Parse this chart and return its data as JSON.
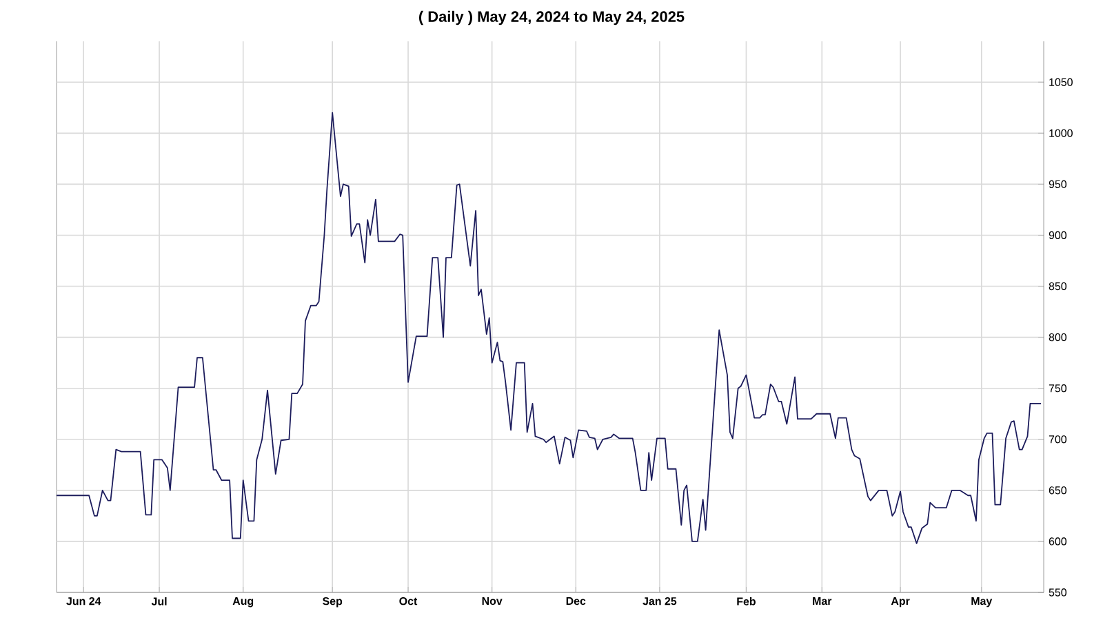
{
  "chart_data": {
    "type": "line",
    "title": "( Daily ) May 24, 2024 to May 24, 2025",
    "x": [
      "2024-05-24",
      "2024-06-05",
      "2024-06-07",
      "2024-06-08",
      "2024-06-10",
      "2024-06-12",
      "2024-06-13",
      "2024-06-15",
      "2024-06-17",
      "2024-06-24",
      "2024-06-26",
      "2024-06-28",
      "2024-06-29",
      "2024-07-02",
      "2024-07-04",
      "2024-07-05",
      "2024-07-08",
      "2024-07-14",
      "2024-07-15",
      "2024-07-17",
      "2024-07-19",
      "2024-07-21",
      "2024-07-22",
      "2024-07-24",
      "2024-07-27",
      "2024-07-28",
      "2024-07-31",
      "2024-08-01",
      "2024-08-03",
      "2024-08-05",
      "2024-08-06",
      "2024-08-08",
      "2024-08-10",
      "2024-08-13",
      "2024-08-15",
      "2024-08-18",
      "2024-08-19",
      "2024-08-21",
      "2024-08-23",
      "2024-08-24",
      "2024-08-26",
      "2024-08-28",
      "2024-08-29",
      "2024-08-31",
      "2024-09-01",
      "2024-09-03",
      "2024-09-06",
      "2024-09-07",
      "2024-09-09",
      "2024-09-10",
      "2024-09-12",
      "2024-09-13",
      "2024-09-15",
      "2024-09-16",
      "2024-09-17",
      "2024-09-19",
      "2024-09-20",
      "2024-09-26",
      "2024-09-28",
      "2024-09-29",
      "2024-10-01",
      "2024-10-04",
      "2024-10-08",
      "2024-10-10",
      "2024-10-12",
      "2024-10-14",
      "2024-10-15",
      "2024-10-17",
      "2024-10-19",
      "2024-10-20",
      "2024-10-24",
      "2024-10-26",
      "2024-10-27",
      "2024-10-28",
      "2024-10-30",
      "2024-10-31",
      "2024-11-01",
      "2024-11-03",
      "2024-11-04",
      "2024-11-05",
      "2024-11-06",
      "2024-11-08",
      "2024-11-10",
      "2024-11-13",
      "2024-11-14",
      "2024-11-16",
      "2024-11-17",
      "2024-11-20",
      "2024-11-21",
      "2024-11-24",
      "2024-11-26",
      "2024-11-28",
      "2024-11-30",
      "2024-12-01",
      "2024-12-03",
      "2024-12-06",
      "2024-12-07",
      "2024-12-09",
      "2024-12-10",
      "2024-12-12",
      "2024-12-15",
      "2024-12-16",
      "2024-12-18",
      "2024-12-23",
      "2024-12-24",
      "2024-12-26",
      "2024-12-28",
      "2024-12-29",
      "2024-12-30",
      "2025-01-01",
      "2025-01-04",
      "2025-01-05",
      "2025-01-08",
      "2025-01-10",
      "2025-01-11",
      "2025-01-12",
      "2025-01-14",
      "2025-01-16",
      "2025-01-18",
      "2025-01-19",
      "2025-01-24",
      "2025-01-27",
      "2025-01-28",
      "2025-01-29",
      "2025-01-31",
      "2025-02-01",
      "2025-02-03",
      "2025-02-06",
      "2025-02-08",
      "2025-02-09",
      "2025-02-10",
      "2025-02-12",
      "2025-02-13",
      "2025-02-15",
      "2025-02-16",
      "2025-02-18",
      "2025-02-21",
      "2025-02-22",
      "2025-02-27",
      "2025-03-01",
      "2025-03-06",
      "2025-03-08",
      "2025-03-09",
      "2025-03-12",
      "2025-03-14",
      "2025-03-15",
      "2025-03-17",
      "2025-03-20",
      "2025-03-21",
      "2025-03-24",
      "2025-03-27",
      "2025-03-29",
      "2025-03-30",
      "2025-04-01",
      "2025-04-02",
      "2025-04-04",
      "2025-04-05",
      "2025-04-07",
      "2025-04-09",
      "2025-04-11",
      "2025-04-12",
      "2025-04-14",
      "2025-04-18",
      "2025-04-20",
      "2025-04-23",
      "2025-04-26",
      "2025-04-27",
      "2025-04-29",
      "2025-04-30",
      "2025-05-02",
      "2025-05-03",
      "2025-05-05",
      "2025-05-06",
      "2025-05-08",
      "2025-05-10",
      "2025-05-12",
      "2025-05-13",
      "2025-05-15",
      "2025-05-16",
      "2025-05-18",
      "2025-05-19",
      "2025-05-23"
    ],
    "values": [
      645,
      645,
      625,
      625,
      650,
      640,
      640,
      690,
      688,
      688,
      626,
      626,
      680,
      680,
      672,
      650,
      751,
      751,
      780,
      780,
      725,
      670,
      670,
      660,
      660,
      603,
      603,
      660,
      620,
      620,
      680,
      700,
      748,
      666,
      699,
      700,
      745,
      745,
      754,
      816,
      831,
      831,
      835,
      900,
      945,
      1020,
      938,
      950,
      948,
      899,
      911,
      911,
      873,
      915,
      900,
      935,
      894,
      894,
      901,
      900,
      756,
      801,
      801,
      878,
      878,
      800,
      878,
      878,
      949,
      950,
      870,
      924,
      841,
      847,
      803,
      819,
      775,
      795,
      777,
      776,
      756,
      709,
      775,
      775,
      707,
      735,
      703,
      700,
      697,
      703,
      676,
      702,
      699,
      682,
      709,
      708,
      702,
      701,
      690,
      700,
      702,
      705,
      701,
      701,
      687,
      650,
      650,
      687,
      660,
      701,
      701,
      671,
      671,
      616,
      650,
      655,
      600,
      600,
      641,
      611,
      807,
      763,
      707,
      701,
      750,
      752,
      763,
      721,
      721,
      724,
      724,
      754,
      751,
      737,
      737,
      715,
      761,
      720,
      720,
      725,
      725,
      701,
      721,
      721,
      690,
      684,
      681,
      644,
      640,
      650,
      650,
      625,
      629,
      649,
      629,
      614,
      614,
      598,
      613,
      617,
      638,
      633,
      633,
      650,
      650,
      645,
      645,
      620,
      680,
      701,
      706,
      706,
      636,
      636,
      701,
      717,
      718,
      690,
      690,
      703,
      735,
      735
    ],
    "color": "#1c1c5c",
    "xlim": [
      "2024-05-24",
      "2025-05-24"
    ],
    "xticks": [
      {
        "value": "2024-06-03",
        "label": "Jun 24"
      },
      {
        "value": "2024-07-01",
        "label": "Jul"
      },
      {
        "value": "2024-08-01",
        "label": "Aug"
      },
      {
        "value": "2024-09-03",
        "label": "Sep"
      },
      {
        "value": "2024-10-01",
        "label": "Oct"
      },
      {
        "value": "2024-11-01",
        "label": "Nov"
      },
      {
        "value": "2024-12-02",
        "label": "Dec"
      },
      {
        "value": "2025-01-02",
        "label": "Jan 25"
      },
      {
        "value": "2025-02-03",
        "label": "Feb"
      },
      {
        "value": "2025-03-03",
        "label": "Mar"
      },
      {
        "value": "2025-04-01",
        "label": "Apr"
      },
      {
        "value": "2025-05-01",
        "label": "May"
      }
    ],
    "ylim": [
      550,
      1090
    ],
    "yticks": [
      550,
      600,
      650,
      700,
      750,
      800,
      850,
      900,
      950,
      1000,
      1050
    ],
    "grid": true,
    "legend": false,
    "marker": "none",
    "line_style": "solid"
  }
}
